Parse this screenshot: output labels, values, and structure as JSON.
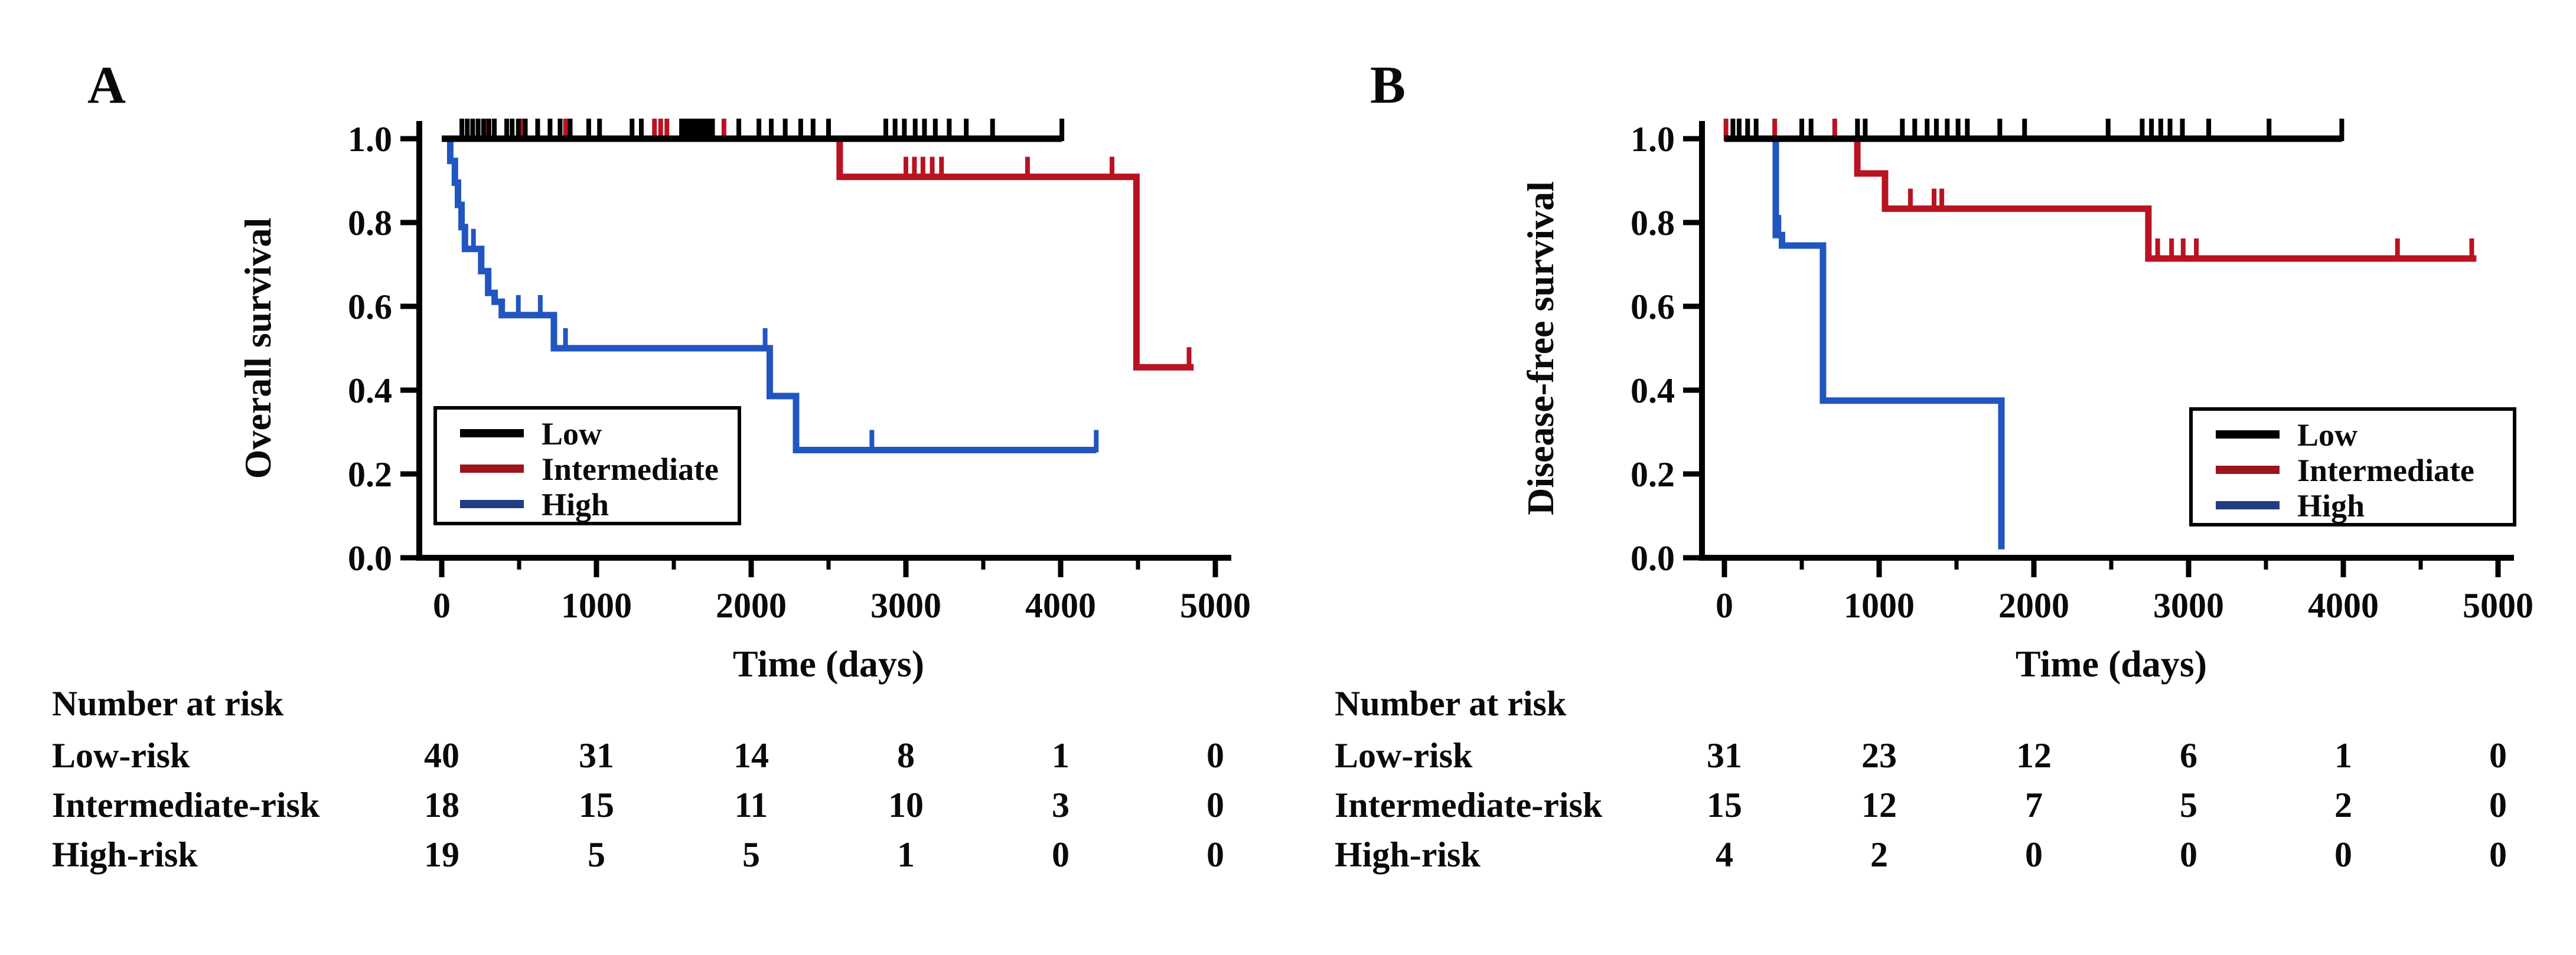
{
  "chart_data": {
    "type": "line",
    "subtype": "kaplan_meier_step_curves",
    "panels": [
      {
        "label": "A",
        "xlabel": "Time (days)",
        "ylabel": "Overall survival",
        "xlim": [
          0,
          5000
        ],
        "ylim": [
          0.0,
          1.0
        ],
        "x_ticks": [
          0,
          1000,
          2000,
          3000,
          4000,
          5000
        ],
        "x_minor_ticks": [
          500,
          1500,
          2500,
          3500,
          4500
        ],
        "y_ticks": [
          "0.0",
          "0.2",
          "0.4",
          "0.6",
          "0.8",
          "1.0"
        ],
        "grid": false,
        "legend": {
          "position": "lower-left",
          "entries": [
            {
              "label": "Low",
              "color": "#000000"
            },
            {
              "label": "Intermediate",
              "color": "#9c151c"
            },
            {
              "label": "High",
              "color": "#1f3d80"
            }
          ]
        },
        "series": [
          {
            "name": "Low",
            "color": "#000000",
            "start_value": 1.0,
            "steps": [],
            "end_time": 4008,
            "censor_marks": [
              [
                130,
                1
              ],
              [
                165,
                1
              ],
              [
                200,
                1
              ],
              [
                235,
                1
              ],
              [
                270,
                1
              ],
              [
                305,
                1
              ],
              [
                340,
                1
              ],
              [
                420,
                1
              ],
              [
                455,
                1
              ],
              [
                495,
                1
              ],
              [
                540,
                1
              ],
              [
                620,
                1
              ],
              [
                700,
                1
              ],
              [
                765,
                1
              ],
              [
                830,
                1
              ],
              [
                950,
                1
              ],
              [
                1020,
                1
              ],
              [
                1230,
                1
              ],
              [
                1290,
                1
              ],
              [
                1550,
                1
              ],
              [
                1575,
                1
              ],
              [
                1600,
                1
              ],
              [
                1625,
                1
              ],
              [
                1650,
                1
              ],
              [
                1675,
                1
              ],
              [
                1700,
                1
              ],
              [
                1725,
                1
              ],
              [
                1750,
                1
              ],
              [
                1920,
                1
              ],
              [
                2050,
                1
              ],
              [
                2130,
                1
              ],
              [
                2220,
                1
              ],
              [
                2320,
                1
              ],
              [
                2400,
                1
              ],
              [
                2500,
                1
              ],
              [
                2870,
                1
              ],
              [
                2930,
                1
              ],
              [
                2990,
                1
              ],
              [
                3060,
                1
              ],
              [
                3120,
                1
              ],
              [
                3190,
                1
              ],
              [
                3280,
                1
              ],
              [
                3390,
                1
              ],
              [
                3560,
                1
              ],
              [
                4008,
                1
              ]
            ]
          },
          {
            "name": "Intermediate",
            "color": "#b91322",
            "start_value": 1.0,
            "steps": [
              [
                2572,
                0.909
              ],
              [
                4490,
                0.4545
              ]
            ],
            "end_time": 4860,
            "censor_marks": [
              [
                275,
                1
              ],
              [
                510,
                1
              ],
              [
                800,
                1
              ],
              [
                1375,
                1
              ],
              [
                1415,
                1
              ],
              [
                1455,
                1
              ],
              [
                1824,
                1
              ],
              [
                3000,
                0.909
              ],
              [
                3055,
                0.909
              ],
              [
                3110,
                0.909
              ],
              [
                3170,
                0.909
              ],
              [
                3230,
                0.909
              ],
              [
                3786,
                0.909
              ],
              [
                4332,
                0.909
              ],
              [
                4830,
                0.4545
              ]
            ]
          },
          {
            "name": "High",
            "color": "#2155c0",
            "start_value": 1.0,
            "steps": [
              [
                55,
                0.947
              ],
              [
                85,
                0.895
              ],
              [
                105,
                0.842
              ],
              [
                128,
                0.789
              ],
              [
                150,
                0.737
              ],
              [
                255,
                0.684
              ],
              [
                300,
                0.632
              ],
              [
                342,
                0.611
              ],
              [
                388,
                0.579
              ],
              [
                725,
                0.5
              ],
              [
                2120,
                0.386
              ],
              [
                2290,
                0.257
              ]
            ],
            "end_time": 4230,
            "censor_marks": [
              [
                205,
                0.737
              ],
              [
                495,
                0.579
              ],
              [
                637,
                0.579
              ],
              [
                800,
                0.5
              ],
              [
                2090,
                0.5
              ],
              [
                2780,
                0.257
              ],
              [
                4230,
                0.257
              ]
            ]
          }
        ],
        "risk_table": {
          "title": "Number at risk",
          "rows": [
            {
              "label": "Low-risk",
              "values": [
                "40",
                "31",
                "14",
                "8",
                "1",
                "0"
              ]
            },
            {
              "label": "Intermediate-risk",
              "values": [
                "18",
                "15",
                "11",
                "10",
                "3",
                "0"
              ]
            },
            {
              "label": "High-risk",
              "values": [
                "19",
                "5",
                "5",
                "1",
                "0",
                "0"
              ]
            }
          ]
        }
      },
      {
        "label": "B",
        "xlabel": "Time (days)",
        "ylabel": "Disease-free survival",
        "xlim": [
          0,
          5000
        ],
        "ylim": [
          0.0,
          1.0
        ],
        "x_ticks": [
          0,
          1000,
          2000,
          3000,
          4000,
          5000
        ],
        "x_minor_ticks": [
          500,
          1500,
          2500,
          3500,
          4500
        ],
        "y_ticks": [
          "0.0",
          "0.2",
          "0.4",
          "0.6",
          "0.8",
          "1.0"
        ],
        "grid": false,
        "legend": {
          "position": "lower-right",
          "entries": [
            {
              "label": "Low",
              "color": "#000000"
            },
            {
              "label": "Intermediate",
              "color": "#9c151c"
            },
            {
              "label": "High",
              "color": "#1f3d80"
            }
          ]
        },
        "series": [
          {
            "name": "Low",
            "color": "#000000",
            "start_value": 1.0,
            "steps": [],
            "end_time": 3990,
            "censor_marks": [
              [
                55,
                1
              ],
              [
                95,
                1
              ],
              [
                150,
                1
              ],
              [
                205,
                1
              ],
              [
                500,
                1
              ],
              [
                560,
                1
              ],
              [
                860,
                1
              ],
              [
                910,
                1
              ],
              [
                1150,
                1
              ],
              [
                1230,
                1
              ],
              [
                1310,
                1
              ],
              [
                1370,
                1
              ],
              [
                1440,
                1
              ],
              [
                1510,
                1
              ],
              [
                1570,
                1
              ],
              [
                1780,
                1
              ],
              [
                1940,
                1
              ],
              [
                2480,
                1
              ],
              [
                2700,
                1
              ],
              [
                2760,
                1
              ],
              [
                2820,
                1
              ],
              [
                2880,
                1
              ],
              [
                2960,
                1
              ],
              [
                3130,
                1
              ],
              [
                3520,
                1
              ],
              [
                3990,
                1
              ]
            ]
          },
          {
            "name": "Intermediate",
            "color": "#b91322",
            "start_value": 1.0,
            "steps": [
              [
                859,
                0.917
              ],
              [
                1038,
                0.833
              ],
              [
                2740,
                0.714
              ]
            ],
            "end_time": 4860,
            "censor_marks": [
              [
                10,
                1
              ],
              [
                325,
                1
              ],
              [
                713,
                1
              ],
              [
                1202,
                0.833
              ],
              [
                1355,
                0.833
              ],
              [
                1405,
                0.833
              ],
              [
                2800,
                0.714
              ],
              [
                2890,
                0.714
              ],
              [
                2965,
                0.714
              ],
              [
                3050,
                0.714
              ],
              [
                4350,
                0.714
              ],
              [
                4830,
                0.714
              ]
            ]
          },
          {
            "name": "High",
            "color": "#2155c0",
            "start_value": 1.0,
            "steps": [
              [
                332,
                0.77
              ],
              [
                372,
                0.745
              ],
              [
                637,
                0.375
              ],
              [
                1790,
                0.02
              ]
            ],
            "end_time": 1790,
            "censor_marks": [
              [
                352,
                0.77
              ]
            ]
          }
        ],
        "risk_table": {
          "title": "Number at risk",
          "rows": [
            {
              "label": "Low-risk",
              "values": [
                "31",
                "23",
                "12",
                "6",
                "1",
                "0"
              ]
            },
            {
              "label": "Intermediate-risk",
              "values": [
                "15",
                "12",
                "7",
                "5",
                "2",
                "0"
              ]
            },
            {
              "label": "High-risk",
              "values": [
                "4",
                "2",
                "0",
                "0",
                "0",
                "0"
              ]
            }
          ]
        }
      }
    ]
  }
}
